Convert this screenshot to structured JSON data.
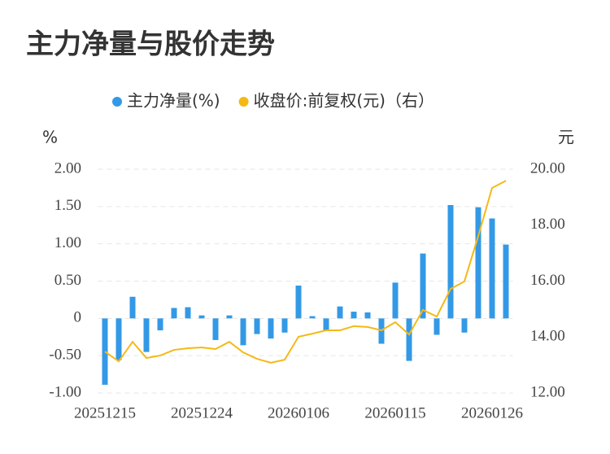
{
  "chart_data": {
    "type": "bar_line",
    "title": "主力净量与股价走势",
    "y_label": "%",
    "y2_label": "元",
    "categories": [
      "20251215",
      null,
      null,
      null,
      null,
      null,
      null,
      "20251224",
      null,
      null,
      null,
      null,
      null,
      null,
      "20260106",
      null,
      null,
      null,
      null,
      null,
      null,
      "20260115",
      null,
      null,
      null,
      null,
      null,
      null,
      "20260126",
      null
    ],
    "series": [
      {
        "name": "主力净量(%)",
        "color": "#3399e6",
        "type": "bar",
        "values": [
          -0.89,
          -0.56,
          0.29,
          -0.45,
          -0.16,
          0.14,
          0.15,
          0.04,
          -0.29,
          0.04,
          -0.36,
          -0.21,
          -0.27,
          -0.19,
          0.44,
          0.03,
          -0.16,
          0.16,
          0.09,
          0.08,
          -0.34,
          0.48,
          -0.57,
          0.87,
          -0.22,
          1.52,
          -0.19,
          1.49,
          1.34,
          0.99
        ]
      },
      {
        "name": "收盘价:前复权(元)（右）",
        "color": "#f5b915",
        "type": "line",
        "axis": "y2",
        "values": [
          13.48,
          13.13,
          13.83,
          13.25,
          13.34,
          13.54,
          13.6,
          13.63,
          13.57,
          13.83,
          13.45,
          13.22,
          13.08,
          13.19,
          14.01,
          14.12,
          14.24,
          14.24,
          14.39,
          14.36,
          14.24,
          14.53,
          14.09,
          14.97,
          14.73,
          15.72,
          15.99,
          17.61,
          19.33,
          19.59
        ]
      }
    ],
    "ylim": [
      -1,
      2
    ],
    "yticks": [
      {
        "value": -1,
        "label": "-1.00"
      },
      {
        "value": -0.5,
        "label": "-0.50"
      },
      0,
      {
        "value": 0.5,
        "label": "0.50"
      },
      {
        "value": 1,
        "label": "1.00"
      },
      {
        "value": 1.5,
        "label": "1.50"
      },
      {
        "value": 2,
        "label": "2.00"
      }
    ],
    "y2lim": [
      12,
      20
    ],
    "y2ticks": [
      {
        "value": 12,
        "label": "12.00"
      },
      {
        "value": 14,
        "label": "14.00"
      },
      {
        "value": 16,
        "label": "16.00"
      },
      {
        "value": 18,
        "label": "18.00"
      },
      {
        "value": 20,
        "label": "20.00"
      }
    ],
    "grid": true,
    "legend": "top"
  }
}
